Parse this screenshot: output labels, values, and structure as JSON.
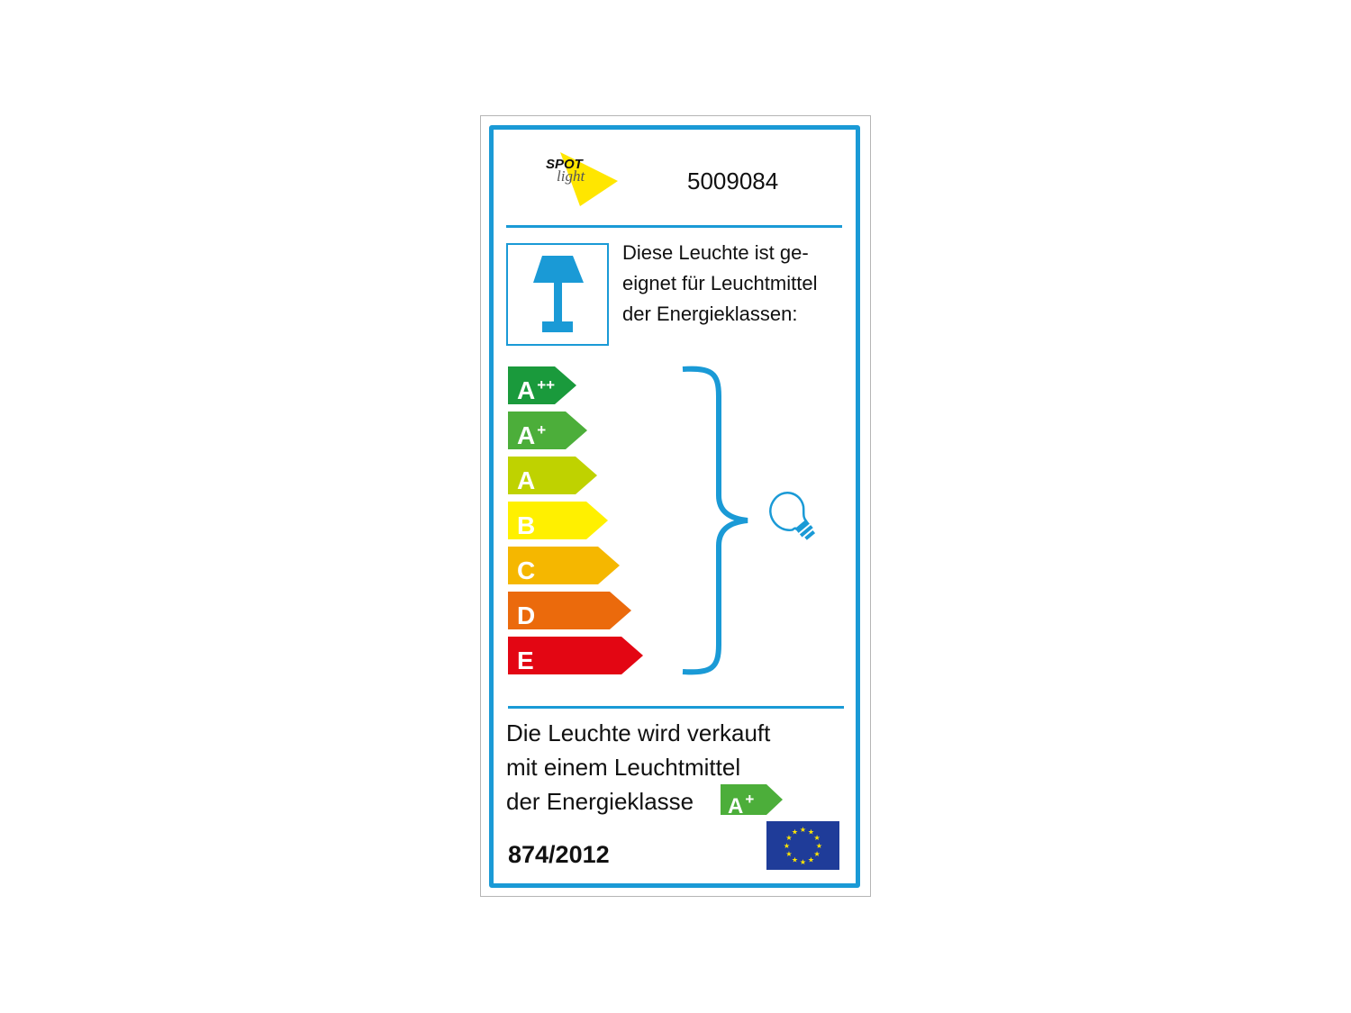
{
  "logo": {
    "text_top": "SPOT",
    "text_bottom": "light",
    "color": "#ffe600"
  },
  "article_number": "5009084",
  "intro_lines": [
    "Diese Leuchte ist ge-",
    "eignet für Leuchtmittel",
    "der Energieklassen:"
  ],
  "icons": {
    "lamp": "table-lamp-icon",
    "bulb": "light-bulb-icon",
    "brace": "curly-brace",
    "flag": "eu-flag-icon"
  },
  "accent_color": "#1a9ad6",
  "classes": [
    {
      "letter": "A",
      "sup": "++",
      "color": "#1a9a3c"
    },
    {
      "letter": "A",
      "sup": "+",
      "color": "#4cae3a"
    },
    {
      "letter": "A",
      "sup": "",
      "color": "#bfd200"
    },
    {
      "letter": "B",
      "sup": "",
      "color": "#fff000"
    },
    {
      "letter": "C",
      "sup": "",
      "color": "#f5b700"
    },
    {
      "letter": "D",
      "sup": "",
      "color": "#eb6a0c"
    },
    {
      "letter": "E",
      "sup": "",
      "color": "#e30613"
    }
  ],
  "sold_with_lines": [
    "Die Leuchte wird verkauft",
    "mit einem Leuchtmittel",
    "der Energieklasse"
  ],
  "sold_with_class": {
    "letter": "A",
    "sup": "+",
    "color": "#4cae3a"
  },
  "regulation": "874/2012"
}
